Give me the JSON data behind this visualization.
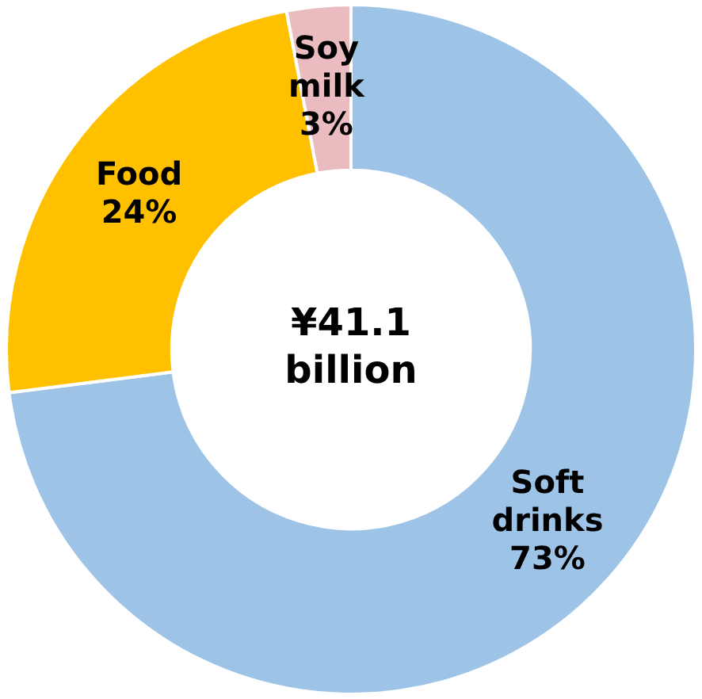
{
  "chart_data": {
    "type": "donut",
    "categories": [
      "Soft drinks",
      "Food",
      "Soy milk"
    ],
    "values": [
      73,
      24,
      3
    ],
    "colors": [
      "#9dc3e6",
      "#ffc000",
      "#eabcc0"
    ],
    "value_labels": [
      "73%",
      "24%",
      "3%"
    ],
    "annotations": [
      "¥41.1 billion"
    ],
    "legend": false
  }
}
